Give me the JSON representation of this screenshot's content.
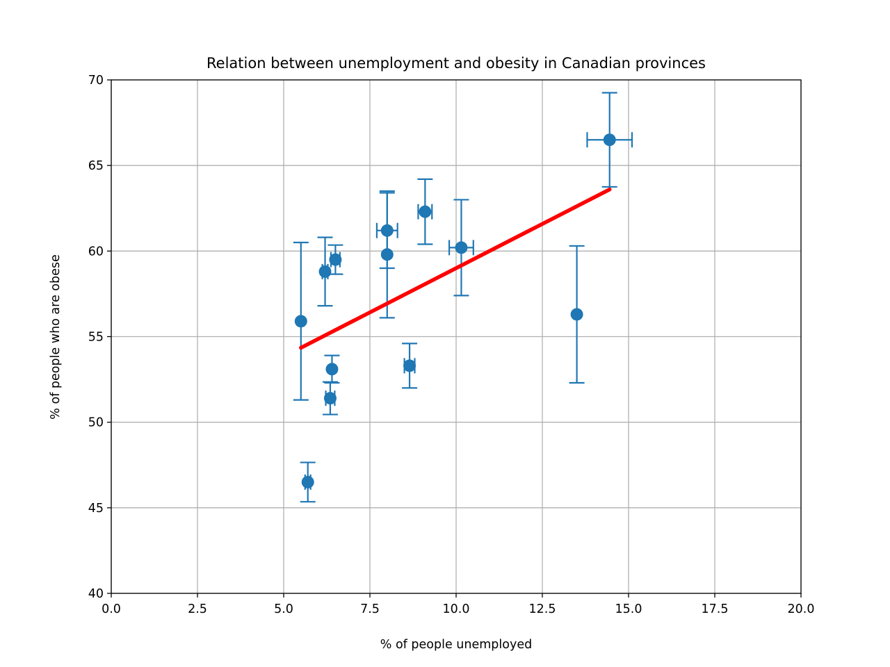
{
  "chart_data": {
    "type": "scatter",
    "title": "Relation between unemployment and obesity in Canadian provinces",
    "xlabel": "% of people unemployed",
    "ylabel": "% of people who are obese",
    "xlim": [
      0,
      20
    ],
    "ylim": [
      40,
      70
    ],
    "x_ticks": [
      0.0,
      2.5,
      5.0,
      7.5,
      10.0,
      12.5,
      15.0,
      17.5,
      20.0
    ],
    "x_tick_labels": [
      "0.0",
      "2.5",
      "5.0",
      "7.5",
      "10.0",
      "12.5",
      "15.0",
      "17.5",
      "20.0"
    ],
    "y_ticks": [
      40,
      45,
      50,
      55,
      60,
      65,
      70
    ],
    "y_tick_labels": [
      "40",
      "45",
      "50",
      "55",
      "60",
      "65",
      "70"
    ],
    "grid": true,
    "series": [
      {
        "marker_color": "#1f77b4",
        "points": [
          {
            "x": 5.5,
            "y": 55.9,
            "xerr": 0.0,
            "yerr": 4.6
          },
          {
            "x": 5.7,
            "y": 46.5,
            "xerr": 0.08,
            "yerr": 1.15
          },
          {
            "x": 6.2,
            "y": 58.8,
            "xerr": 0.08,
            "yerr": 2.0
          },
          {
            "x": 6.4,
            "y": 53.1,
            "xerr": 0.0,
            "yerr": 0.8
          },
          {
            "x": 6.35,
            "y": 51.4,
            "xerr": 0.13,
            "yerr": 0.95
          },
          {
            "x": 6.5,
            "y": 59.5,
            "xerr": 0.13,
            "yerr": 0.85
          },
          {
            "x": 8.0,
            "y": 61.2,
            "xerr": 0.3,
            "yerr": 2.2
          },
          {
            "x": 8.0,
            "y": 59.8,
            "xerr": 0.0,
            "yerr": 3.7
          },
          {
            "x": 8.65,
            "y": 53.3,
            "xerr": 0.15,
            "yerr": 1.3
          },
          {
            "x": 9.1,
            "y": 62.3,
            "xerr": 0.2,
            "yerr": 1.9
          },
          {
            "x": 10.15,
            "y": 60.2,
            "xerr": 0.35,
            "yerr": 2.8
          },
          {
            "x": 13.5,
            "y": 56.3,
            "xerr": 0.0,
            "yerr": 4.0
          },
          {
            "x": 14.45,
            "y": 66.5,
            "xerr": 0.65,
            "yerr": 2.75
          }
        ]
      }
    ],
    "fit_line": {
      "color": "#ff0000",
      "x": [
        5.5,
        14.45
      ],
      "y": [
        54.35,
        63.6
      ]
    }
  }
}
